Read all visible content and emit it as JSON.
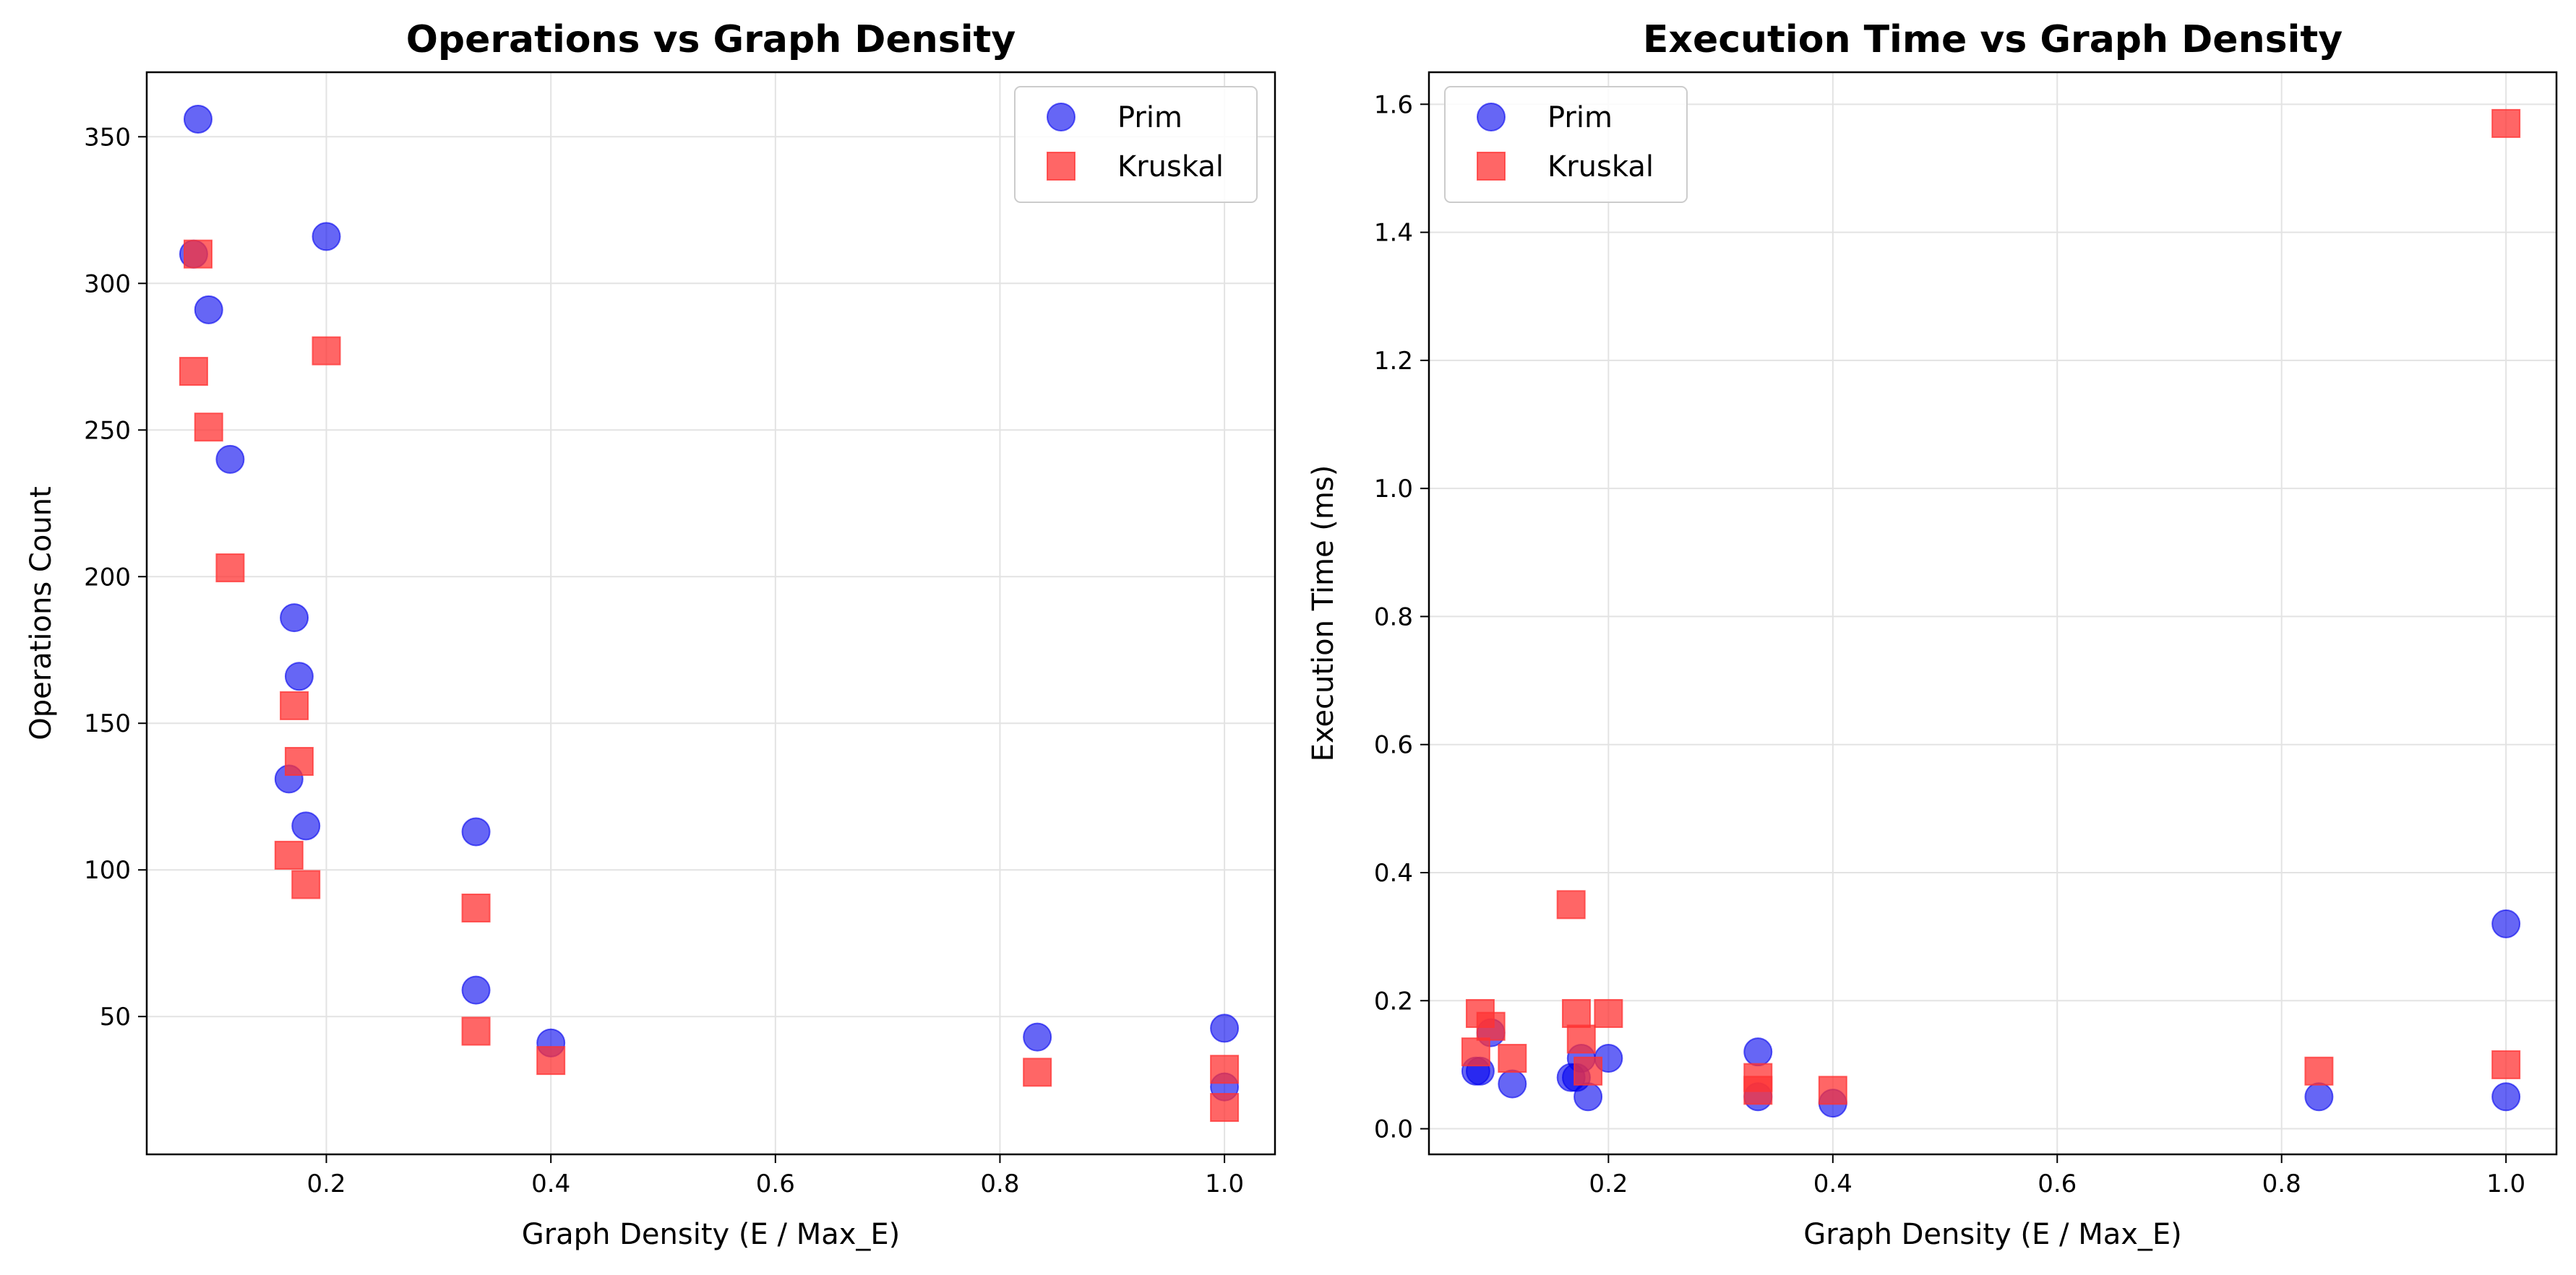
{
  "chart_data": [
    {
      "type": "scatter",
      "title": "Operations vs Graph Density",
      "xlabel": "Graph Density (E / Max_E)",
      "ylabel": "Operations Count",
      "xlim": [
        0.04,
        1.045
      ],
      "ylim": [
        3,
        372
      ],
      "xticks": [
        0.2,
        0.4,
        0.6,
        0.8,
        1.0
      ],
      "xtick_labels": [
        "0.2",
        "0.4",
        "0.6",
        "0.8",
        "1.0"
      ],
      "yticks": [
        50,
        100,
        150,
        200,
        250,
        300,
        350
      ],
      "ytick_labels": [
        "50",
        "100",
        "150",
        "200",
        "250",
        "300",
        "350"
      ],
      "grid": true,
      "legend_position": "top-right",
      "series": [
        {
          "name": "Prim",
          "marker": "circle",
          "color": "#0000ee",
          "points": [
            [
              0.0818,
              310
            ],
            [
              0.0857,
              356
            ],
            [
              0.0952,
              291
            ],
            [
              0.1143,
              240
            ],
            [
              0.1667,
              131
            ],
            [
              0.1714,
              186
            ],
            [
              0.1758,
              166
            ],
            [
              0.1818,
              115
            ],
            [
              0.2,
              316
            ],
            [
              0.3333,
              113
            ],
            [
              0.3333,
              59
            ],
            [
              0.4,
              41
            ],
            [
              0.8333,
              43
            ],
            [
              1.0,
              46
            ],
            [
              1.0,
              26
            ]
          ]
        },
        {
          "name": "Kruskal",
          "marker": "square",
          "color": "#ff3333",
          "points": [
            [
              0.0818,
              270
            ],
            [
              0.0857,
              310
            ],
            [
              0.0952,
              251
            ],
            [
              0.1143,
              203
            ],
            [
              0.1667,
              105
            ],
            [
              0.1714,
              156
            ],
            [
              0.1758,
              137
            ],
            [
              0.1818,
              95
            ],
            [
              0.2,
              277
            ],
            [
              0.3333,
              87
            ],
            [
              0.3333,
              45
            ],
            [
              0.4,
              35
            ],
            [
              0.8333,
              31
            ],
            [
              1.0,
              32
            ],
            [
              1.0,
              19
            ]
          ]
        }
      ]
    },
    {
      "type": "scatter",
      "title": "Execution Time vs Graph Density",
      "xlabel": "Graph Density (E / Max_E)",
      "ylabel": "Execution Time (ms)",
      "xlim": [
        0.04,
        1.045
      ],
      "ylim": [
        -0.04,
        1.65
      ],
      "xticks": [
        0.2,
        0.4,
        0.6,
        0.8,
        1.0
      ],
      "xtick_labels": [
        "0.2",
        "0.4",
        "0.6",
        "0.8",
        "1.0"
      ],
      "yticks": [
        0.0,
        0.2,
        0.4,
        0.6,
        0.8,
        1.0,
        1.2,
        1.4,
        1.6
      ],
      "ytick_labels": [
        "0.0",
        "0.2",
        "0.4",
        "0.6",
        "0.8",
        "1.0",
        "1.2",
        "1.4",
        "1.6"
      ],
      "grid": true,
      "legend_position": "top-left",
      "series": [
        {
          "name": "Prim",
          "marker": "circle",
          "color": "#0000ee",
          "points": [
            [
              0.0818,
              0.09
            ],
            [
              0.0857,
              0.09
            ],
            [
              0.0952,
              0.15
            ],
            [
              0.1143,
              0.07
            ],
            [
              0.1667,
              0.08
            ],
            [
              0.1714,
              0.08
            ],
            [
              0.1758,
              0.11
            ],
            [
              0.1818,
              0.05
            ],
            [
              0.2,
              0.11
            ],
            [
              0.3333,
              0.12
            ],
            [
              0.3333,
              0.05
            ],
            [
              0.4,
              0.04
            ],
            [
              0.8333,
              0.05
            ],
            [
              1.0,
              0.32
            ],
            [
              1.0,
              0.05
            ]
          ]
        },
        {
          "name": "Kruskal",
          "marker": "square",
          "color": "#ff3333",
          "points": [
            [
              0.0818,
              0.12
            ],
            [
              0.0857,
              0.18
            ],
            [
              0.0952,
              0.16
            ],
            [
              0.1143,
              0.11
            ],
            [
              0.1667,
              0.35
            ],
            [
              0.1714,
              0.18
            ],
            [
              0.1758,
              0.14
            ],
            [
              0.1818,
              0.09
            ],
            [
              0.2,
              0.18
            ],
            [
              0.3333,
              0.08
            ],
            [
              0.3333,
              0.06
            ],
            [
              0.4,
              0.06
            ],
            [
              0.8333,
              0.09
            ],
            [
              1.0,
              1.57
            ],
            [
              1.0,
              0.1
            ]
          ]
        }
      ]
    }
  ]
}
